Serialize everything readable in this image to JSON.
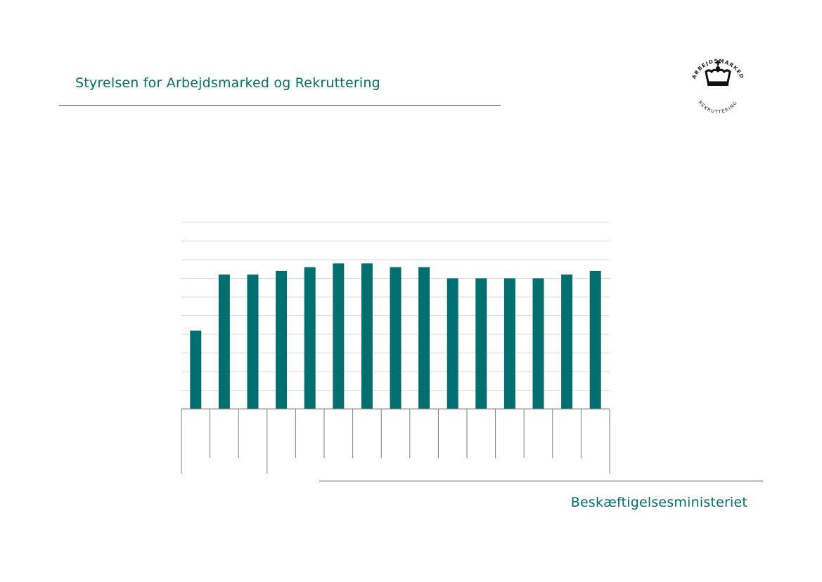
{
  "header": {
    "title": "Styrelsen for Arbejdsmarked og Rekruttering"
  },
  "logo": {
    "top_text": "ARBEJDSMARKED",
    "bottom_text": "REKRUTTERING",
    "icon": "crown-icon"
  },
  "footer": {
    "ministry": "Beskæftigelsesministeriet"
  },
  "colors": {
    "accent": "#00706f",
    "bar": "#006f70",
    "grid": "#d9d9d9",
    "axis": "#7f7f7f"
  },
  "chart_data": {
    "type": "bar",
    "title": "",
    "xlabel": "",
    "ylabel": "",
    "ylim": [
      0,
      10
    ],
    "gridlines": 10,
    "grid": true,
    "legend": "none",
    "categories": [
      "",
      "",
      "",
      "",
      "",
      "",
      "",
      "",
      "",
      "",
      "",
      "",
      "",
      "",
      ""
    ],
    "values": [
      4.2,
      7.2,
      7.2,
      7.4,
      7.6,
      7.8,
      7.8,
      7.6,
      7.6,
      7.0,
      7.0,
      7.0,
      7.0,
      7.2,
      7.4
    ]
  }
}
